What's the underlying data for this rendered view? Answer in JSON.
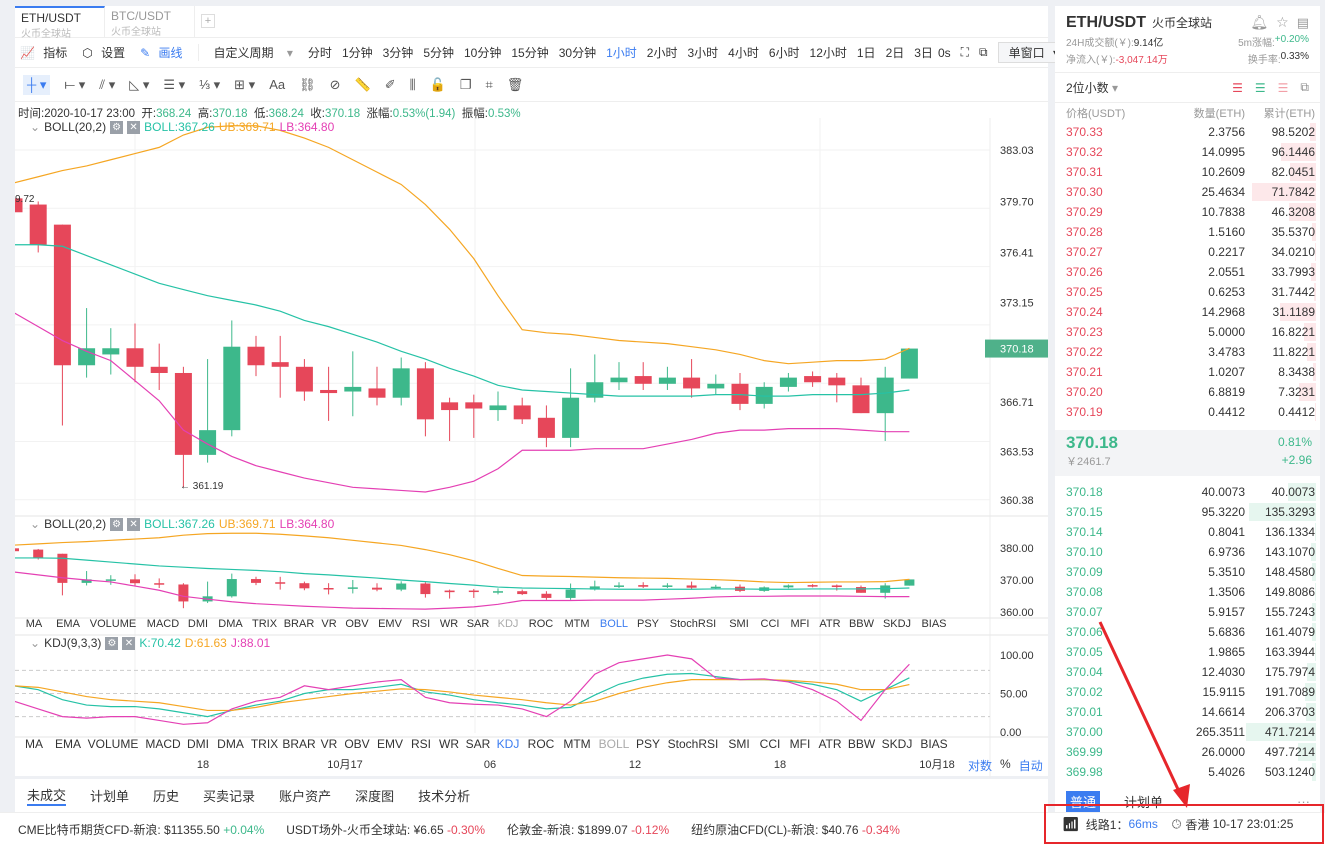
{
  "tabs": [
    {
      "pair": "ETH/USDT",
      "exchange": "火币全球站"
    },
    {
      "pair": "BTC/USDT",
      "exchange": "火币全球站"
    }
  ],
  "add_tab": "+",
  "toolbar": {
    "indicator": "指标",
    "settings": "设置",
    "draw": "画线",
    "custom_period": "自定义周期",
    "periods": [
      "分时",
      "1分钟",
      "3分钟",
      "5分钟",
      "10分钟",
      "15分钟",
      "30分钟",
      "1小时",
      "2小时",
      "3小时",
      "4小时",
      "6小时",
      "12小时",
      "1日",
      "2日",
      "3日"
    ],
    "active_period": "1小时",
    "countdown": "0s",
    "window_mode": "单窗口"
  },
  "draw_tools": [
    "crosshair",
    "horizontal-segment",
    "parallel-lines",
    "triangle",
    "horizontal-lines",
    "fibonacci",
    "rectangle",
    "text",
    "pattern",
    "link",
    "ruler",
    "pencil",
    "price-range",
    "lock",
    "copy",
    "magnet",
    "delete"
  ],
  "draw_text_tool": "Aa",
  "ohlc_info": {
    "time_label": "时间:",
    "time": "2020-10-17 23:00",
    "open_label": "开:",
    "open": "368.24",
    "high_label": "高:",
    "high": "370.18",
    "low_label": "低:",
    "low": "368.24",
    "close_label": "收:",
    "close": "370.18",
    "change_label": "涨幅:",
    "change": "0.53%(1.94)",
    "amp_label": "振幅:",
    "amp": "0.53%"
  },
  "boll": {
    "name": "BOLL(20,2)",
    "mid": "BOLL:367.26",
    "ub": "UB:369.71",
    "lb": "LB:364.80"
  },
  "kdj": {
    "name": "KDJ(9,3,3)",
    "k": "K:70.42",
    "d": "D:61.63",
    "j": "J:88.01"
  },
  "price_axis": [
    "383.03",
    "379.70",
    "376.41",
    "373.15",
    "370.18",
    "366.71",
    "363.53",
    "360.38"
  ],
  "high_marker": "9.72",
  "low_marker": "← 361.19",
  "mini_axis": [
    "380.00",
    "370.00",
    "360.00"
  ],
  "kdj_axis": [
    "100.00",
    "50.00",
    "0.00"
  ],
  "indicator_tabs": [
    "MA",
    "EMA",
    "VOLUME",
    "MACD",
    "DMI",
    "DMA",
    "TRIX",
    "BRAR",
    "VR",
    "OBV",
    "EMV",
    "RSI",
    "WR",
    "SAR",
    "KDJ",
    "ROC",
    "MTM",
    "BOLL",
    "PSY",
    "StochRSI",
    "SMI",
    "CCI",
    "MFI",
    "ATR",
    "BBW",
    "SKDJ",
    "BIAS"
  ],
  "time_axis": [
    "18",
    "10月17",
    "06",
    "12",
    "18",
    "10月18"
  ],
  "axis_opts": {
    "log": "对数",
    "pct": "%",
    "auto": "自动"
  },
  "colors": {
    "up": "#3db88b",
    "down": "#e6475a",
    "ub": "#f5a623",
    "mid": "#26c2a6",
    "lb": "#e440b4",
    "k": "#26c2a6",
    "d": "#f5a623",
    "j": "#e440b4"
  },
  "chart_data": {
    "type": "candlestick",
    "title": "ETH/USDT 1小时",
    "ylim": [
      360.38,
      383.03
    ],
    "candles": [
      [
        379.9,
        379.0,
        380.0,
        378.4
      ],
      [
        379.5,
        376.9,
        379.7,
        376.4
      ],
      [
        378.2,
        369.1,
        378.2,
        365.2
      ],
      [
        369.1,
        370.2,
        372.8,
        368.3
      ],
      [
        369.8,
        370.2,
        371.5,
        368.5
      ],
      [
        370.2,
        369.0,
        371.8,
        368.0
      ],
      [
        369.0,
        368.6,
        370.5,
        367.5
      ],
      [
        368.6,
        363.3,
        369.0,
        361.19
      ],
      [
        363.3,
        364.9,
        369.5,
        362.8
      ],
      [
        364.9,
        370.3,
        372.0,
        364.5
      ],
      [
        370.3,
        369.1,
        371.0,
        368.4
      ],
      [
        369.3,
        369.0,
        371.0,
        367.0
      ],
      [
        369.0,
        367.4,
        369.5,
        366.8
      ],
      [
        367.5,
        367.3,
        369.0,
        365.5
      ],
      [
        367.4,
        367.7,
        370.0,
        365.8
      ],
      [
        367.6,
        367.0,
        369.0,
        366.5
      ],
      [
        367.0,
        368.9,
        369.6,
        366.5
      ],
      [
        368.9,
        365.6,
        369.3,
        364.5
      ],
      [
        366.7,
        366.2,
        367.0,
        364.2
      ],
      [
        366.7,
        366.3,
        367.2,
        364.4
      ],
      [
        366.2,
        366.5,
        367.4,
        365.5
      ],
      [
        366.5,
        365.6,
        367.0,
        365.3
      ],
      [
        365.7,
        364.4,
        366.5,
        363.8
      ],
      [
        364.4,
        367.0,
        368.9,
        363.8
      ],
      [
        367.0,
        368.0,
        369.8,
        366.7
      ],
      [
        368.0,
        368.3,
        369.3,
        367.5
      ],
      [
        368.4,
        367.9,
        369.3,
        367.5
      ],
      [
        367.9,
        368.3,
        369.0,
        367.5
      ],
      [
        368.3,
        367.6,
        369.5,
        367.0
      ],
      [
        367.6,
        367.9,
        368.5,
        367.2
      ],
      [
        367.9,
        366.6,
        368.6,
        366.2
      ],
      [
        366.6,
        367.7,
        368.0,
        366.3
      ],
      [
        367.7,
        368.3,
        368.6,
        367.4
      ],
      [
        368.4,
        368.0,
        368.7,
        367.7
      ],
      [
        368.3,
        367.8,
        368.6,
        366.7
      ],
      [
        367.8,
        366.0,
        368.3,
        366.0
      ],
      [
        366.0,
        368.3,
        369.0,
        364.2
      ],
      [
        368.24,
        370.18,
        370.18,
        368.24
      ]
    ],
    "ub": [
      380.9,
      381.3,
      381.7,
      382.0,
      382.4,
      382.8,
      383.2,
      384.0,
      384.5,
      384.6,
      384.6,
      384.3,
      383.8,
      383.2,
      382.4,
      381.6,
      380.8,
      379.5,
      377.9,
      376.0,
      373.6,
      371.4,
      371.2,
      371.1,
      370.9,
      370.7,
      370.6,
      370.5,
      370.3,
      370.1,
      369.8,
      369.4,
      369.2,
      369.3,
      369.4,
      369.4,
      369.5,
      370.2
    ],
    "mid": [
      376.9,
      376.9,
      376.8,
      376.2,
      375.6,
      375.0,
      374.4,
      374.0,
      373.6,
      373.3,
      373.0,
      372.6,
      372.0,
      371.6,
      371.1,
      370.6,
      370.0,
      369.5,
      368.9,
      368.4,
      367.8,
      367.5,
      367.4,
      367.3,
      367.2,
      367.1,
      367.1,
      367.1,
      367.1,
      367.2,
      367.2,
      367.1,
      367.1,
      367.2,
      367.2,
      367.2,
      367.3,
      367.5
    ],
    "lb": [
      372.5,
      371.6,
      370.7,
      370.0,
      369.4,
      368.1,
      366.8,
      364.9,
      364.0,
      363.2,
      362.6,
      362.2,
      361.8,
      361.5,
      361.2,
      361.1,
      361.0,
      360.9,
      361.2,
      361.6,
      362.4,
      363.6,
      363.6,
      363.6,
      363.7,
      363.7,
      363.7,
      364.0,
      364.3,
      364.7,
      364.9,
      364.9,
      365.0,
      365.0,
      365.0,
      364.9,
      364.8,
      364.8
    ],
    "k": [
      60,
      55,
      42,
      35,
      33,
      33,
      30,
      25,
      20,
      28,
      35,
      40,
      50,
      55,
      55,
      58,
      62,
      52,
      48,
      42,
      38,
      35,
      30,
      32,
      48,
      62,
      70,
      75,
      76,
      72,
      68,
      68,
      66,
      62,
      55,
      40,
      55,
      70.42
    ],
    "d": [
      60,
      58,
      52,
      46,
      42,
      40,
      38,
      33,
      28,
      28,
      32,
      38,
      42,
      46,
      50,
      53,
      56,
      55,
      52,
      48,
      45,
      42,
      38,
      35,
      40,
      50,
      58,
      64,
      68,
      68,
      68,
      68,
      67,
      65,
      62,
      55,
      55,
      61.63
    ],
    "j": [
      40,
      30,
      20,
      18,
      20,
      20,
      15,
      10,
      12,
      30,
      40,
      45,
      60,
      55,
      60,
      65,
      68,
      45,
      38,
      36,
      35,
      30,
      20,
      40,
      75,
      90,
      95,
      100,
      95,
      70,
      68,
      69,
      65,
      55,
      40,
      15,
      55,
      88.01
    ]
  },
  "right": {
    "pair": "ETH/USDT",
    "exchange": "火币全球站",
    "vol_label": "24H成交额(￥):",
    "vol": "9.14亿",
    "chg5m_label": "5m涨幅:",
    "chg5m": "+0.20%",
    "inflow_label": "净流入(￥):",
    "inflow": "-3,047.14万",
    "turnover_label": "换手率:",
    "turnover": "0.33%",
    "decimals": "2位小数",
    "headers": [
      "价格(USDT)",
      "数量(ETH)",
      "累计(ETH)"
    ],
    "asks": [
      [
        "370.33",
        "2.3756",
        "98.5202"
      ],
      [
        "370.32",
        "14.0995",
        "96.1446"
      ],
      [
        "370.31",
        "10.2609",
        "82.0451"
      ],
      [
        "370.30",
        "25.4634",
        "71.7842"
      ],
      [
        "370.29",
        "10.7838",
        "46.3208"
      ],
      [
        "370.28",
        "1.5160",
        "35.5370"
      ],
      [
        "370.27",
        "0.2217",
        "34.0210"
      ],
      [
        "370.26",
        "2.0551",
        "33.7993"
      ],
      [
        "370.25",
        "0.6253",
        "31.7442"
      ],
      [
        "370.24",
        "14.2968",
        "31.1189"
      ],
      [
        "370.23",
        "5.0000",
        "16.8221"
      ],
      [
        "370.22",
        "3.4783",
        "11.8221"
      ],
      [
        "370.21",
        "1.0207",
        "8.3438"
      ],
      [
        "370.20",
        "6.8819",
        "7.3231"
      ],
      [
        "370.19",
        "0.4412",
        "0.4412"
      ]
    ],
    "last": "370.18",
    "last_cny": "￥2461.7",
    "last_pct": "0.81%",
    "last_chg": "+2.96",
    "bids": [
      [
        "370.18",
        "40.0073",
        "40.0073"
      ],
      [
        "370.15",
        "95.3220",
        "135.3293"
      ],
      [
        "370.14",
        "0.8041",
        "136.1334"
      ],
      [
        "370.10",
        "6.9736",
        "143.1070"
      ],
      [
        "370.09",
        "5.3510",
        "148.4580"
      ],
      [
        "370.08",
        "1.3506",
        "149.8086"
      ],
      [
        "370.07",
        "5.9157",
        "155.7243"
      ],
      [
        "370.06",
        "5.6836",
        "161.4079"
      ],
      [
        "370.05",
        "1.9865",
        "163.3944"
      ],
      [
        "370.04",
        "12.4030",
        "175.7974"
      ],
      [
        "370.02",
        "15.9115",
        "191.7089"
      ],
      [
        "370.01",
        "14.6614",
        "206.3703"
      ],
      [
        "370.00",
        "265.3511",
        "471.7214"
      ],
      [
        "369.99",
        "26.0000",
        "497.7214"
      ],
      [
        "369.98",
        "5.4026",
        "503.1240"
      ]
    ],
    "order_tabs": [
      "普通",
      "计划单"
    ],
    "more": "···"
  },
  "bottom_tabs": [
    "未成交",
    "计划单",
    "历史",
    "买卖记录",
    "账户资产",
    "深度图",
    "技术分析"
  ],
  "tickers": [
    {
      "name": "CME比特币期货CFD-新浪:",
      "price": "$11355.50",
      "chg": "+0.04%",
      "up": true
    },
    {
      "name": "USDT场外-火币全球站:",
      "price": "¥6.65",
      "chg": "-0.30%",
      "up": false
    },
    {
      "name": "伦敦金-新浪:",
      "price": "$1899.07",
      "chg": "-0.12%",
      "up": false
    },
    {
      "name": "纽约原油CFD(CL)-新浪:",
      "price": "$40.76",
      "chg": "-0.34%",
      "up": false
    }
  ],
  "status": {
    "line": "线路1：",
    "latency": "66ms",
    "location": "香港",
    "time": "10-17 23:01:25"
  }
}
